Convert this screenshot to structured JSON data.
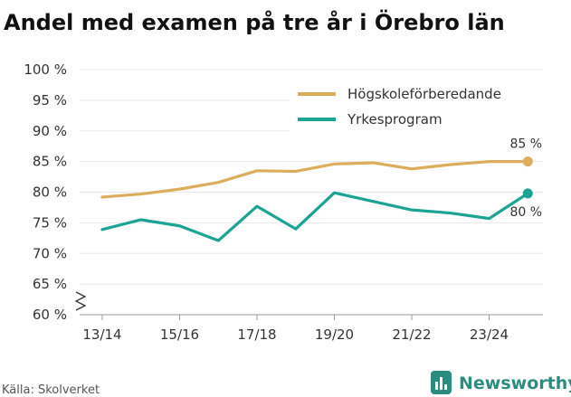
{
  "chart_data": {
    "type": "line",
    "title": "Andel med examen på tre år i Örebro län",
    "xlabel": "",
    "ylabel": "",
    "x": [
      "13/14",
      "14/15",
      "15/16",
      "16/17",
      "17/18",
      "18/19",
      "19/20",
      "20/21",
      "21/22",
      "22/23",
      "23/24",
      "24/25"
    ],
    "xticks": [
      "13/14",
      "15/16",
      "17/18",
      "19/20",
      "21/22",
      "23/24"
    ],
    "yticks": [
      "60 %",
      "65 %",
      "70 %",
      "75 %",
      "80 %",
      "85 %",
      "90 %",
      "95 %",
      "100 %"
    ],
    "ylim": [
      60,
      100
    ],
    "y_axis_break": true,
    "grid": true,
    "legend_position": "top-right",
    "series": [
      {
        "name": "Högskoleförberedande",
        "color": "#dcae5c",
        "values": [
          79.2,
          79.7,
          80.5,
          81.6,
          83.5,
          83.4,
          84.6,
          84.8,
          83.8,
          84.5,
          85.0,
          85.0
        ],
        "end_label": "85 %"
      },
      {
        "name": "Yrkesprogram",
        "color": "#1ba394",
        "values": [
          73.9,
          75.5,
          74.5,
          72.1,
          77.7,
          74.0,
          79.9,
          78.5,
          77.1,
          76.6,
          75.7,
          79.8
        ],
        "end_label": "80 %"
      }
    ]
  },
  "source": "Källa: Skolverket",
  "brand": "Newsworthy"
}
